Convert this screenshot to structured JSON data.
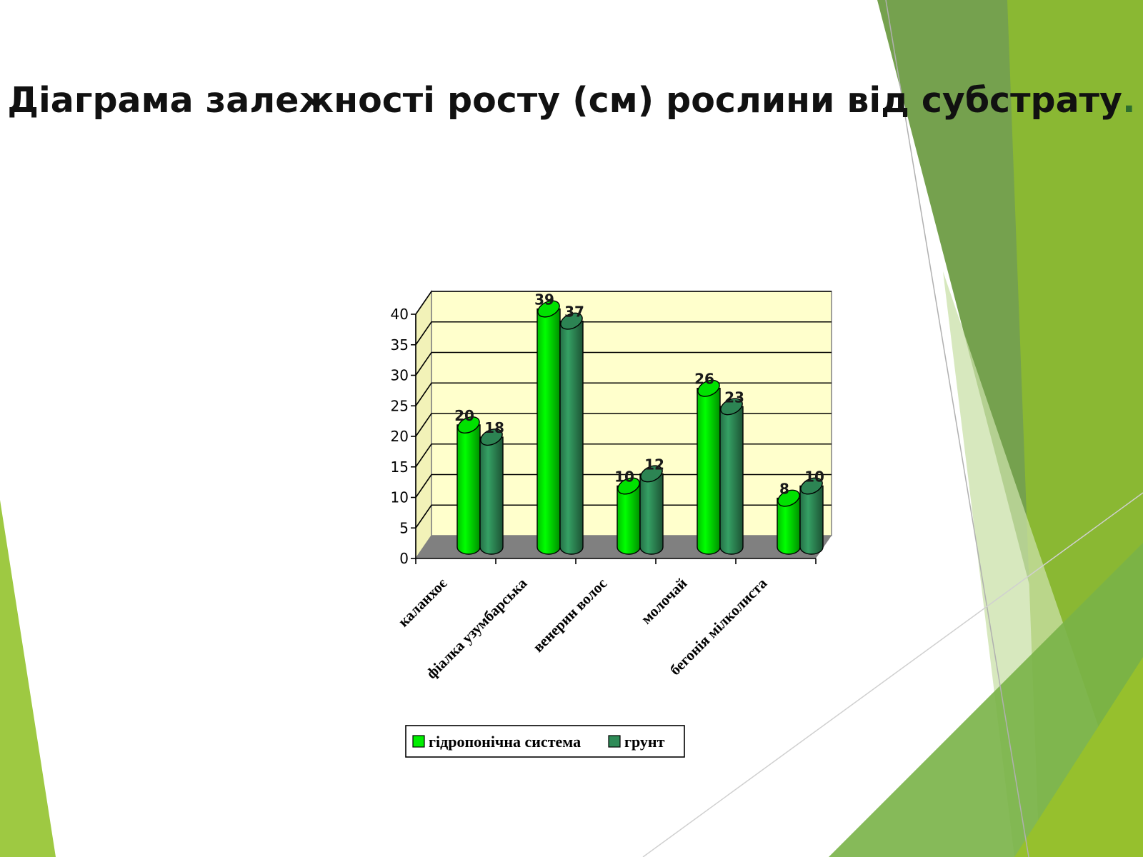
{
  "slide": {
    "title": "Діаграма залежності росту (см) рослини від субстрату",
    "title_end": "."
  },
  "theme": {
    "wall_color": "#ffffcc",
    "floor_color": "#808080",
    "decor_greens": [
      "#9ec942",
      "#6e9c45",
      "#8ab833",
      "#c9e0a8",
      "#79b347"
    ]
  },
  "chart_data": {
    "type": "bar",
    "style": "3d-cylinder",
    "categories": [
      "каланхоє",
      "фіалка узумбарська",
      "венерин волос",
      "молочай",
      "бегонія мілколиста"
    ],
    "series": [
      {
        "name": "гідропонічна система",
        "color": "#00ee00",
        "values": [
          20,
          39,
          10,
          26,
          8
        ]
      },
      {
        "name": "грунт",
        "color": "#2e8b57",
        "values": [
          18,
          37,
          12,
          23,
          10
        ]
      }
    ],
    "ylim": [
      0,
      40
    ],
    "yticks": [
      "0",
      "5",
      "10",
      "15",
      "20",
      "25",
      "30",
      "35",
      "40"
    ],
    "grid": true,
    "legend_position": "bottom"
  }
}
